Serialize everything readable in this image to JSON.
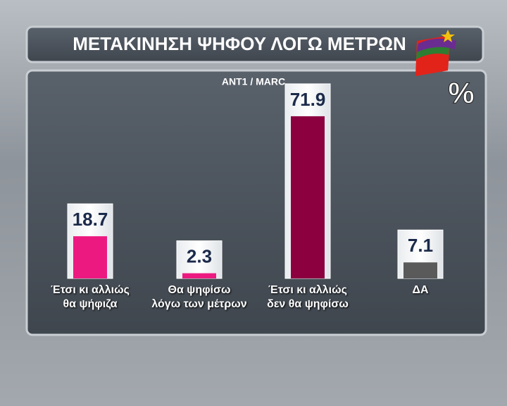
{
  "chart_data": {
    "type": "bar",
    "title": "ΜΕΤΑΚΙΝΗΣΗ ΨΗΦΟΥ ΛΟΓΩ ΜΕΤΡΩΝ",
    "subtitle": "ANT1 / MARC",
    "unit": "%",
    "categories": [
      "Έτσι κι αλλιώς\nθα ψήφιζα",
      "Θα ψηφίσω\nλόγω των μέτρων",
      "Έτσι κι αλλιώς\nδεν θα ψηφίσω",
      "ΔΑ"
    ],
    "values": [
      18.7,
      2.3,
      71.9,
      7.1
    ],
    "colors": [
      "#ec1a80",
      "#ec1a80",
      "#8c0040",
      "#5a5a5a"
    ]
  }
}
